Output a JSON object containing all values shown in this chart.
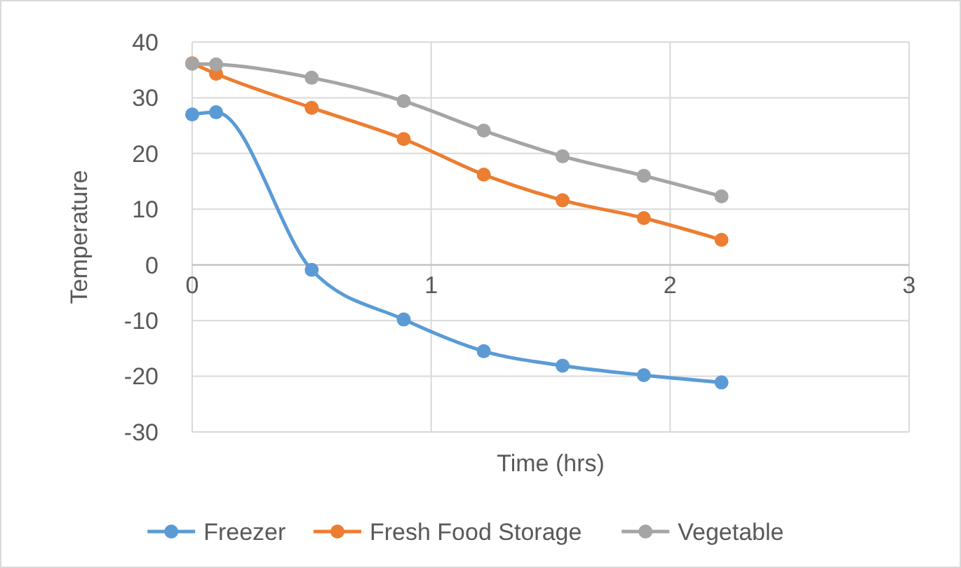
{
  "chart_data": {
    "type": "line",
    "xlabel": "Time (hrs)",
    "ylabel": "Temperature",
    "x": [
      0,
      0.1,
      0.5,
      0.885,
      1.22,
      1.55,
      1.89,
      2.215
    ],
    "xlim": [
      0,
      3
    ],
    "xticks": [
      0,
      1,
      2,
      3
    ],
    "ylim": [
      -30,
      40
    ],
    "yticks": [
      -30,
      -20,
      -10,
      0,
      10,
      20,
      30,
      40
    ],
    "grid": true,
    "legend": "bottom",
    "marker": "circle",
    "line_style": "solid",
    "series": [
      {
        "name": "Freezer",
        "color": "#5b9bd5",
        "values": [
          27,
          27.4,
          -0.9,
          -9.8,
          -15.5,
          -18.1,
          -19.8,
          -21.1
        ]
      },
      {
        "name": "Fresh Food Storage",
        "color": "#ed7d31",
        "values": [
          36.2,
          34.3,
          28.2,
          22.6,
          16.2,
          11.6,
          8.4,
          4.5
        ]
      },
      {
        "name": "Vegetable",
        "color": "#a5a5a5",
        "values": [
          36.1,
          36,
          33.6,
          29.4,
          24.1,
          19.5,
          16,
          12.3
        ]
      }
    ]
  }
}
